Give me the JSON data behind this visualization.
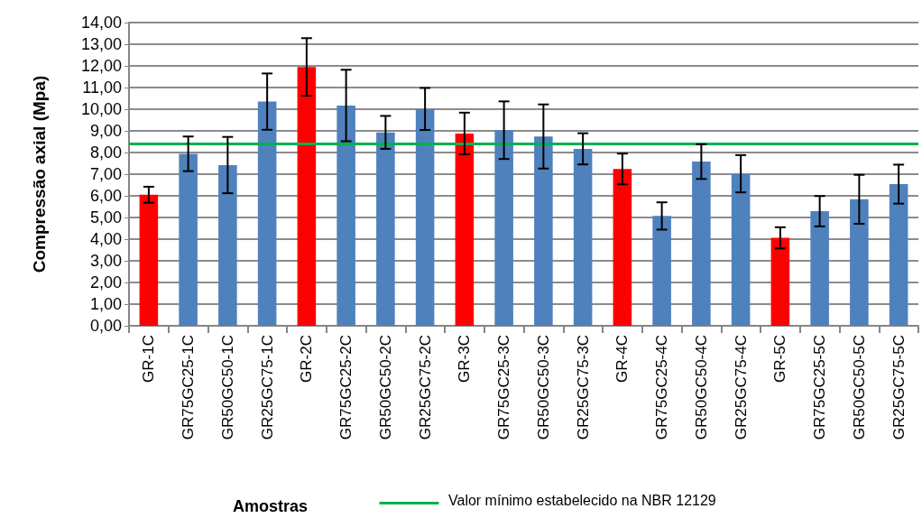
{
  "chart_data": {
    "type": "bar",
    "xlabel": "Amostras",
    "ylabel": "Compressão axial (Mpa)",
    "categories": [
      "GR-1C",
      "GR75GC25-1C",
      "GR50GC50-1C",
      "GR25GC75-1C",
      "GR-2C",
      "GR75GC25-2C",
      "GR50GC50-2C",
      "GR25GC75-2C",
      "GR-3C",
      "GR75GC25-3C",
      "GR50GC50-3C",
      "GR25GC75-3C",
      "GR-4C",
      "GR75GC25-4C",
      "GR50GC50-4C",
      "GR25GC75-4C",
      "GR-5C",
      "GR75GC25-5C",
      "GR50GC50-5C",
      "GR25GC75-5C"
    ],
    "values": [
      6.05,
      7.94,
      7.42,
      10.35,
      11.95,
      10.17,
      8.93,
      10.01,
      8.88,
      9.03,
      8.74,
      8.17,
      7.24,
      5.07,
      7.58,
      7.02,
      4.06,
      5.29,
      5.84,
      6.54
    ],
    "errors": [
      0.37,
      0.8,
      1.3,
      1.3,
      1.33,
      1.65,
      0.76,
      0.97,
      0.96,
      1.33,
      1.48,
      0.72,
      0.71,
      0.63,
      0.8,
      0.86,
      0.49,
      0.7,
      1.13,
      0.9
    ],
    "colors": [
      "#ff0000",
      "#4f81bd",
      "#4f81bd",
      "#4f81bd",
      "#ff0000",
      "#4f81bd",
      "#4f81bd",
      "#4f81bd",
      "#ff0000",
      "#4f81bd",
      "#4f81bd",
      "#4f81bd",
      "#ff0000",
      "#4f81bd",
      "#4f81bd",
      "#4f81bd",
      "#ff0000",
      "#4f81bd",
      "#4f81bd",
      "#4f81bd"
    ],
    "ylim": [
      0,
      14
    ],
    "yticks": [
      {
        "value": 0,
        "label": "0,00"
      },
      {
        "value": 1,
        "label": "1,00"
      },
      {
        "value": 2,
        "label": "2,00"
      },
      {
        "value": 3,
        "label": "3,00"
      },
      {
        "value": 4,
        "label": "4,00"
      },
      {
        "value": 5,
        "label": "5,00"
      },
      {
        "value": 6,
        "label": "6,00"
      },
      {
        "value": 7,
        "label": "7,00"
      },
      {
        "value": 8,
        "label": "8,00"
      },
      {
        "value": 9,
        "label": "9,00"
      },
      {
        "value": 10,
        "label": "10,00"
      },
      {
        "value": 11,
        "label": "11,00"
      },
      {
        "value": 12,
        "label": "12,00"
      },
      {
        "value": 13,
        "label": "13,00"
      },
      {
        "value": 14,
        "label": "14,00"
      }
    ],
    "ref_lines": [
      {
        "axis": "y",
        "value": 8.4,
        "label": "Valor mínimo estabelecido na NBR 12129",
        "color": "#00b050"
      }
    ],
    "grid": "y",
    "legend": "bottom"
  }
}
